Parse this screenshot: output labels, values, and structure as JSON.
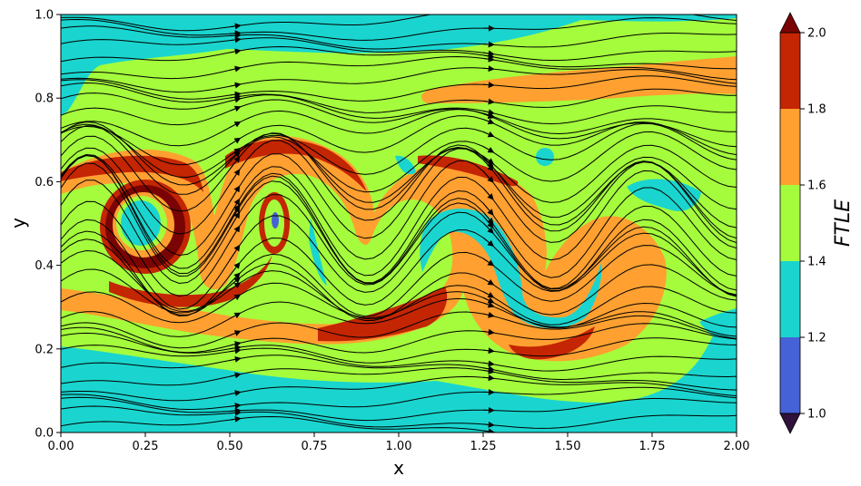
{
  "chart_data": {
    "type": "heatmap",
    "subtype": "filled contour with streamlines",
    "title": "",
    "xlabel": "x",
    "ylabel": "y",
    "xlim": [
      0,
      2
    ],
    "ylim": [
      0,
      1
    ],
    "x_ticks": [
      "0.00",
      "0.25",
      "0.50",
      "0.75",
      "1.00",
      "1.25",
      "1.50",
      "1.75",
      "2.00"
    ],
    "y_ticks": [
      "0.0",
      "0.2",
      "0.4",
      "0.6",
      "0.8",
      "1.0"
    ],
    "grid": false,
    "colorbar": {
      "label": "FTLE",
      "ticks": [
        "1.0",
        "1.2",
        "1.4",
        "1.6",
        "1.8",
        "2.0"
      ],
      "levels": [
        1.0,
        1.2,
        1.4,
        1.6,
        1.8,
        2.0
      ],
      "extend": "both",
      "colors": {
        "under": "#30123b",
        "1.0-1.2": "#4662d7",
        "1.2-1.4": "#1ad5cf",
        "1.4-1.6": "#a4fc3c",
        "1.6-1.8": "#ffa030",
        "1.8-2.0": "#c42503",
        "over": "#7a0403"
      }
    },
    "field_summary": [
      {
        "region": "bottom band (y 0.0-0.2)",
        "ftle_level": "1.2-1.4"
      },
      {
        "region": "top band (y 0.9-1.0)",
        "ftle_level": "1.2-1.4"
      },
      {
        "region": "middle domain (y 0.2-0.9)",
        "ftle_level": "1.4-1.6"
      },
      {
        "region": "vortex core near (0.23, 0.50)",
        "ftle_level": "1.2-1.4"
      },
      {
        "region": "vortex ring around (0.25, 0.48)",
        "ftle_level": "1.8-2.0+"
      },
      {
        "region": "meandering ridge y≈0.6 → 0.3",
        "ftle_level": "1.6-1.8"
      }
    ],
    "streamlines": "black lines with arrowheads, flow left to right"
  }
}
